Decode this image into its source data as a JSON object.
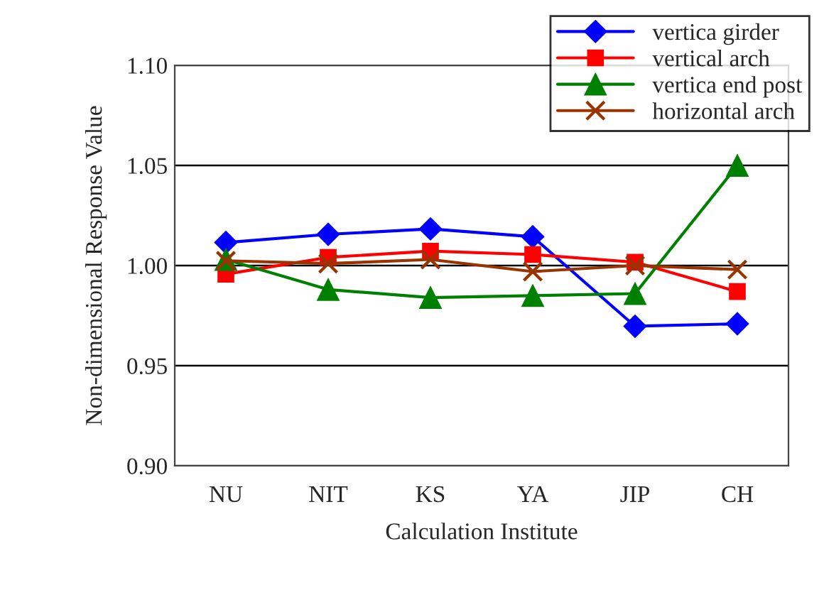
{
  "chart_data": {
    "type": "line",
    "xlabel": "Calculation Institute",
    "ylabel": "Non-dimensional Response Value",
    "categories": [
      "NU",
      "NIT",
      "KS",
      "YA",
      "JIP",
      "CH"
    ],
    "series": [
      {
        "name": "vertica girder",
        "color": "#0000ff",
        "marker": "diamond",
        "values": [
          1.0115,
          1.0156,
          1.0183,
          1.0144,
          0.9697,
          0.9709
        ]
      },
      {
        "name": "vertical arch",
        "color": "#ff0000",
        "marker": "square",
        "values": [
          0.9957,
          1.0041,
          1.0072,
          1.0055,
          1.0017,
          0.987
        ]
      },
      {
        "name": "vertica end post",
        "color": "#008000",
        "marker": "triangle",
        "values": [
          1.003,
          0.988,
          0.984,
          0.985,
          0.986,
          1.05
        ]
      },
      {
        "name": "horizontal arch",
        "color": "#993300",
        "marker": "cross",
        "values": [
          1.0024,
          1.001,
          1.003,
          0.997,
          1.0,
          0.998
        ]
      }
    ],
    "ylim": [
      0.9,
      1.1
    ],
    "yticks": [
      {
        "value": 0.9,
        "label": "0.90"
      },
      {
        "value": 0.95,
        "label": "0.95"
      },
      {
        "value": 1.0,
        "label": "1.00"
      },
      {
        "value": 1.05,
        "label": "1.05"
      },
      {
        "value": 1.1,
        "label": "1.10"
      }
    ],
    "grid": "y",
    "legend": "top right",
    "line_style": "solid"
  }
}
